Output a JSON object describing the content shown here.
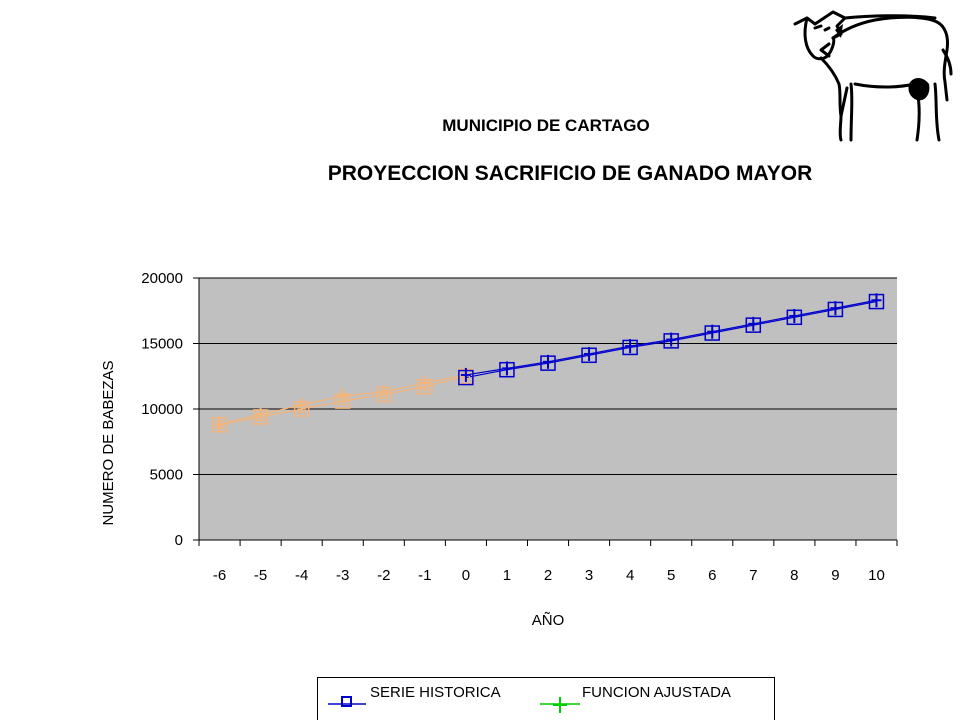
{
  "chart_data": {
    "type": "line",
    "title": "PROYECCION SACRIFICIO DE GANADO MAYOR",
    "subtitle": "MUNICIPIO DE CARTAGO",
    "xlabel": "AÑO",
    "ylabel": "NUMERO DE BABEZAS",
    "x": [
      -6,
      -5,
      -4,
      -3,
      -2,
      -1,
      0,
      1,
      2,
      3,
      4,
      5,
      6,
      7,
      8,
      9,
      10
    ],
    "xlim": [
      -6.5,
      10.5
    ],
    "ylim": [
      0,
      20000
    ],
    "yticks": [
      0,
      5000,
      10000,
      15000,
      20000
    ],
    "grid": true,
    "legend_position": "bottom",
    "series": [
      {
        "name": "SERIE HISTORICA",
        "x": [
          -6,
          -5,
          -4,
          -3,
          -2,
          -1,
          0
        ],
        "values": [
          8800,
          9400,
          10000,
          10600,
          11100,
          11700,
          12500
        ],
        "projected_x": [
          0,
          1,
          2,
          3,
          4,
          5,
          6,
          7,
          8,
          9,
          10
        ],
        "projected_values": [
          12400,
          13000,
          13500,
          14100,
          14700,
          15200,
          15800,
          16400,
          17000,
          17600,
          18200
        ]
      },
      {
        "name": "FUNCION AJUSTADA",
        "x": [
          -6,
          -5,
          -4,
          -3,
          -2,
          -1,
          0,
          1,
          2,
          3,
          4,
          5,
          6,
          7,
          8,
          9,
          10
        ],
        "values": [
          8800,
          9600,
          10300,
          11000,
          11300,
          12000,
          12600,
          13100,
          13600,
          14200,
          14800,
          15300,
          15900,
          16500,
          17100,
          17700,
          18300
        ]
      }
    ],
    "colors": {
      "history": "#f5b57a",
      "projection": "#0000cc",
      "fit_marker_past": "#f5b57a",
      "fit_marker_future": "#0000cc",
      "plot_bg": "#c0c0c0"
    }
  },
  "legend": {
    "serie_historica": "SERIE HISTORICA",
    "funcion_ajustada": "FUNCION AJUSTADA",
    "serie_historica_color": "#0000cc",
    "funcion_ajustada_color": "#00cc00"
  },
  "decoration": {
    "icon": "cow-icon"
  }
}
